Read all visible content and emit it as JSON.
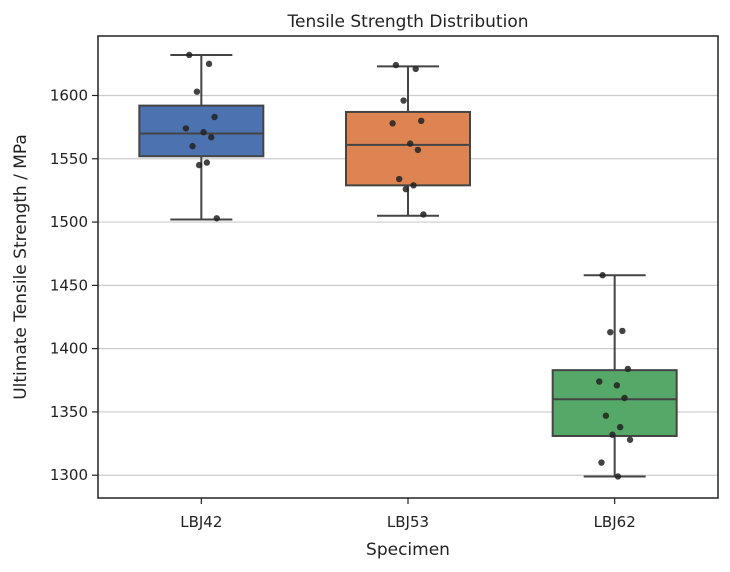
{
  "chart_data": {
    "type": "box",
    "title": "Tensile Strength Distribution",
    "xlabel": "Specimen",
    "ylabel": "Ultimate Tensile Strength / MPa",
    "ylim": [
      1282,
      1647
    ],
    "yticks": [
      1300,
      1350,
      1400,
      1450,
      1500,
      1550,
      1600
    ],
    "grid": "horizontal",
    "categories": [
      "LBJ42",
      "LBJ53",
      "LBJ62"
    ],
    "colors": [
      "#4c72b0",
      "#dd8452",
      "#55a868"
    ],
    "boxes": [
      {
        "name": "LBJ42",
        "whisker_low": 1502,
        "q1": 1552,
        "median": 1570,
        "q3": 1592,
        "whisker_high": 1632
      },
      {
        "name": "LBJ53",
        "whisker_low": 1505,
        "q1": 1529,
        "median": 1561,
        "q3": 1587,
        "whisker_high": 1623
      },
      {
        "name": "LBJ62",
        "whisker_low": 1299,
        "q1": 1331,
        "median": 1360,
        "q3": 1383,
        "whisker_high": 1458
      }
    ],
    "points": [
      {
        "category": "LBJ42",
        "values": [
          1632,
          1625,
          1603,
          1583,
          1574,
          1571,
          1567,
          1560,
          1547,
          1545,
          1503
        ]
      },
      {
        "category": "LBJ53",
        "values": [
          1624,
          1621,
          1596,
          1580,
          1578,
          1562,
          1557,
          1534,
          1529,
          1526,
          1506
        ]
      },
      {
        "category": "LBJ62",
        "values": [
          1458,
          1414,
          1413,
          1384,
          1374,
          1371,
          1361,
          1347,
          1338,
          1332,
          1328,
          1310,
          1299
        ]
      }
    ]
  }
}
